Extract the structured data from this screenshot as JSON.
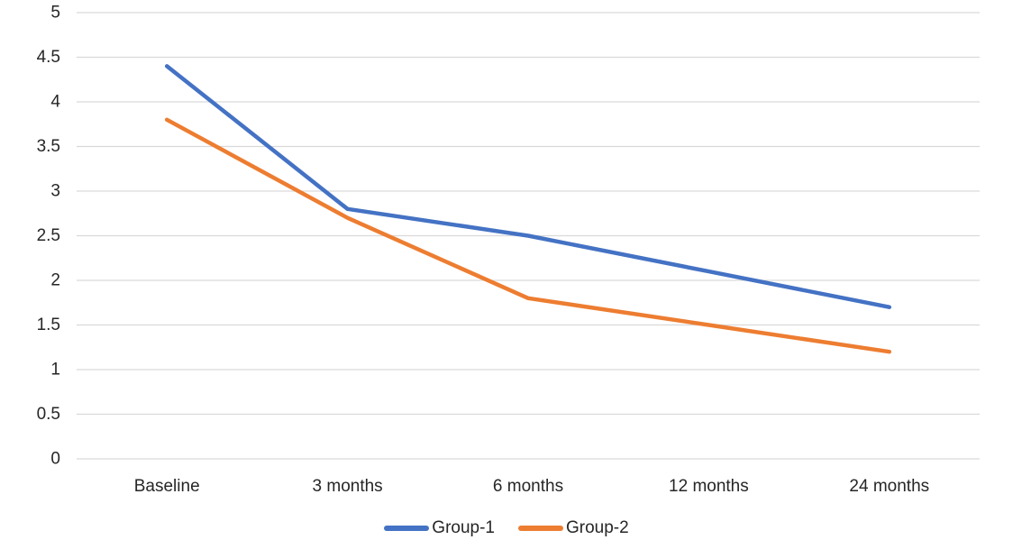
{
  "chart_data": {
    "type": "line",
    "title": "",
    "xlabel": "",
    "ylabel": "",
    "categories": [
      "Baseline",
      "3 months",
      "6 months",
      "12 months",
      "24 months"
    ],
    "series": [
      {
        "name": "Group-1",
        "color": "#4472C4",
        "values": [
          4.4,
          2.8,
          2.5,
          2.1,
          1.7
        ]
      },
      {
        "name": "Group-2",
        "color": "#ED7D31",
        "values": [
          3.8,
          2.7,
          1.8,
          1.5,
          1.2
        ]
      }
    ],
    "ylim": [
      0,
      5
    ],
    "ytick_step": 0.5,
    "y_ticks": [
      "0",
      "0.5",
      "1",
      "1.5",
      "2",
      "2.5",
      "3",
      "3.5",
      "4",
      "4.5",
      "5"
    ],
    "grid": true,
    "gridline_color": "#D9D9D9",
    "axis_label_color": "#262626",
    "line_width": 4.5,
    "legend_position": "bottom-center",
    "background": "#FFFFFF"
  }
}
